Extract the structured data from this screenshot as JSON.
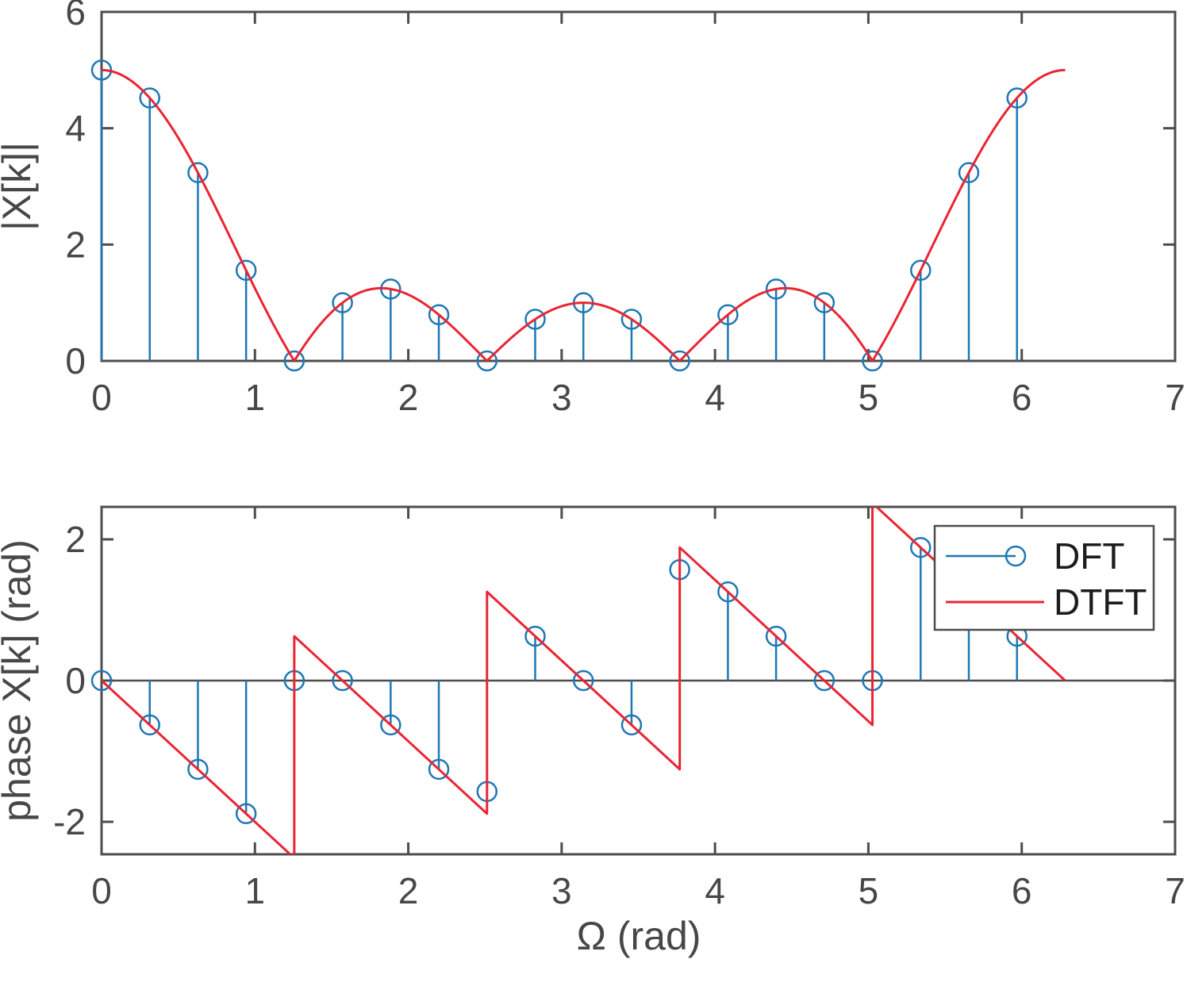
{
  "figure": {
    "background": "#ffffff",
    "colors": {
      "dft_blue": "#1f77b4",
      "dtft_red": "#ea2533",
      "axis": "#4d4d4d",
      "tick_text": "#474747",
      "legend_text": "#1c1c1c",
      "legend_border": "#4d4d4d",
      "baseline": "#4d4d4d"
    }
  },
  "chart_data": [
    {
      "id": "magnitude",
      "type": "stem+line",
      "title": "",
      "xlabel": "",
      "ylabel": "|X[k]|",
      "xlim": [
        0,
        7
      ],
      "ylim": [
        0,
        6
      ],
      "xticks": [
        0,
        1,
        2,
        3,
        4,
        5,
        6,
        7
      ],
      "yticks": [
        0,
        2,
        4,
        6
      ],
      "grid": false,
      "series": [
        {
          "name": "DFT",
          "plot": "stem",
          "marker": "circle-hollow",
          "x": [
            0.0,
            0.3142,
            0.6283,
            0.9425,
            1.2566,
            1.5708,
            1.885,
            2.1991,
            2.5133,
            2.8274,
            3.1416,
            3.4558,
            3.7699,
            4.0841,
            4.3982,
            4.7124,
            5.0265,
            5.3407,
            5.6549,
            5.969
          ],
          "y": [
            5.0,
            4.5201,
            3.2361,
            1.5576,
            0.0,
            1.0,
            1.2361,
            0.7937,
            0.0,
            0.7159,
            1.0,
            0.7159,
            0.0,
            0.7937,
            1.2361,
            1.0,
            0.0,
            1.5576,
            3.2361,
            4.5201
          ]
        },
        {
          "name": "DTFT",
          "plot": "line",
          "formula": {
            "desc": "|sin(5*Omega/2)/sin(Omega/2)|",
            "L": 5,
            "x_min": 0,
            "x_max": 6.2832,
            "peak": 5,
            "zeros": [
              1.2566,
              2.5133,
              3.7699,
              5.0265
            ]
          }
        }
      ]
    },
    {
      "id": "phase",
      "type": "stem+line",
      "title": "",
      "xlabel": "Ω (rad)",
      "ylabel": "phase X[k] (rad)",
      "xlim": [
        0,
        7
      ],
      "ylim": [
        -2.46,
        2.46
      ],
      "xticks": [
        0,
        1,
        2,
        3,
        4,
        5,
        6,
        7
      ],
      "yticks": [
        -2,
        0,
        2
      ],
      "grid": false,
      "baseline": 0,
      "series": [
        {
          "name": "DFT",
          "plot": "stem",
          "marker": "circle-hollow",
          "x": [
            0.0,
            0.3142,
            0.6283,
            0.9425,
            1.2566,
            1.5708,
            1.885,
            2.1991,
            2.5133,
            2.8274,
            3.1416,
            3.4558,
            3.7699,
            4.0841,
            4.3982,
            4.7124,
            5.0265,
            5.3407,
            5.6549,
            5.969
          ],
          "y": [
            0.0,
            -0.6283,
            -1.2566,
            -1.885,
            0.0,
            0.0,
            -0.6283,
            -1.2566,
            -1.5708,
            0.6283,
            0.0,
            -0.6283,
            1.5708,
            1.2566,
            0.6283,
            0.0,
            0.0,
            1.885,
            1.2566,
            0.6283
          ]
        },
        {
          "name": "DTFT",
          "plot": "line",
          "points": [
            [
              0,
              0
            ],
            [
              1.2566,
              -2.5133
            ],
            [
              1.2566,
              0.6283
            ],
            [
              2.5133,
              -1.885
            ],
            [
              2.5133,
              1.2566
            ],
            [
              3.7699,
              -1.2566
            ],
            [
              3.7699,
              1.885
            ],
            [
              5.0265,
              -0.6283
            ],
            [
              5.0265,
              2.5133
            ],
            [
              6.2832,
              0
            ]
          ]
        }
      ],
      "legend": {
        "position": "northeast",
        "entries": [
          {
            "label": "DFT",
            "swatch": "stem-with-marker"
          },
          {
            "label": "DTFT",
            "swatch": "line"
          }
        ]
      }
    }
  ]
}
